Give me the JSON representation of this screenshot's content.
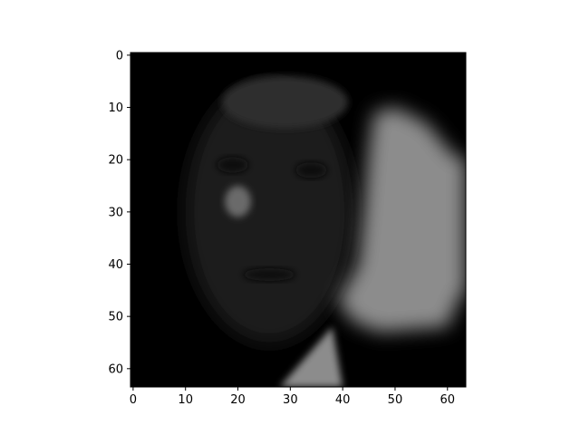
{
  "chart_data": {
    "type": "heatmap",
    "title": "",
    "xlabel": "",
    "ylabel": "",
    "image_size": [
      64,
      64
    ],
    "xlim": [
      -0.5,
      63.5
    ],
    "ylim": [
      63.5,
      -0.5
    ],
    "y_inverted": true,
    "colormap": "gray",
    "x_ticks": [
      0,
      10,
      20,
      30,
      40,
      50,
      60
    ],
    "y_ticks": [
      0,
      10,
      20,
      30,
      40,
      50,
      60
    ],
    "x_tick_labels": [
      "0",
      "10",
      "20",
      "30",
      "40",
      "50",
      "60"
    ],
    "y_tick_labels": [
      "0",
      "10",
      "20",
      "30",
      "40",
      "50",
      "60"
    ],
    "content": "dim grayscale face image (reconstruction-like) with brighter region on right side",
    "regions": [
      {
        "name": "head",
        "shape": "ellipse",
        "cx": 26,
        "cy": 30,
        "rx": 16,
        "ry": 25,
        "intensity": 0.12
      },
      {
        "name": "hair-top",
        "shape": "ellipse",
        "cx": 29,
        "cy": 9,
        "rx": 12,
        "ry": 5,
        "intensity": 0.18
      },
      {
        "name": "cheek-highlight",
        "shape": "ellipse",
        "cx": 20,
        "cy": 28,
        "rx": 2.5,
        "ry": 3,
        "intensity": 0.42
      },
      {
        "name": "left-eye",
        "shape": "ellipse",
        "cx": 19,
        "cy": 21,
        "rx": 3,
        "ry": 1.5,
        "intensity": 0.04
      },
      {
        "name": "right-eye",
        "shape": "ellipse",
        "cx": 34,
        "cy": 22,
        "rx": 3,
        "ry": 1.5,
        "intensity": 0.04
      },
      {
        "name": "mouth",
        "shape": "ellipse",
        "cx": 26,
        "cy": 42,
        "rx": 5,
        "ry": 1.2,
        "intensity": 0.05
      },
      {
        "name": "collar",
        "shape": "polygon",
        "points": [
          [
            28,
            63.5
          ],
          [
            38,
            52
          ],
          [
            40,
            63.5
          ]
        ],
        "intensity": 0.55
      },
      {
        "name": "background-shape",
        "shape": "polygon",
        "points": [
          [
            46,
            11
          ],
          [
            50,
            10
          ],
          [
            56,
            13
          ],
          [
            61,
            19
          ],
          [
            63.5,
            20
          ],
          [
            63.5,
            45
          ],
          [
            62,
            47
          ],
          [
            60,
            52
          ],
          [
            47,
            53
          ],
          [
            42,
            51
          ],
          [
            39,
            47
          ],
          [
            43,
            40
          ],
          [
            44,
            30
          ],
          [
            45,
            18
          ]
        ],
        "intensity": 0.55
      }
    ]
  }
}
